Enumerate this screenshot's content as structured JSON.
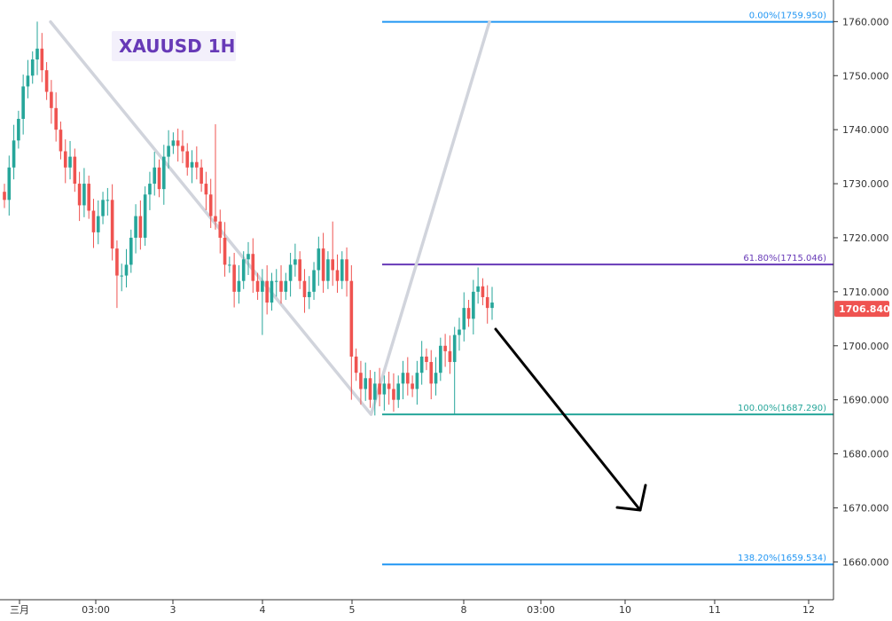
{
  "chart_data": {
    "type": "candlestick",
    "title": "XAUUSD 1H",
    "colors": {
      "up": "#26a69a",
      "down": "#ef5350",
      "fib_0": "#2196f3",
      "fib_618": "#673ab7",
      "fib_100": "#26a69a",
      "fib_1382": "#2196f3",
      "title_bg": "#f3f0fb",
      "title_text": "#673ab7",
      "zigzag": "#d1d4dc",
      "arrow": "#000000",
      "price_tag": "#ef5350",
      "grid_axis": "#333333"
    },
    "y_axis": {
      "min": 1653,
      "max": 1764,
      "ticks": [
        "1760.000",
        "1750.000",
        "1740.000",
        "1730.000",
        "1720.000",
        "1710.000",
        "1700.000",
        "1690.000",
        "1680.000",
        "1670.000",
        "1660.000"
      ],
      "tick_values": [
        1760,
        1750,
        1740,
        1730,
        1720,
        1710,
        1700,
        1690,
        1680,
        1670,
        1660
      ]
    },
    "x_axis": {
      "ticks": [
        "三月",
        "03:00",
        "3",
        "4",
        "5",
        "8",
        "03:00",
        "10",
        "11",
        "12"
      ]
    },
    "current_price": "1706.840",
    "current_price_value": 1706.84,
    "fib_levels": [
      {
        "label": "0.00%(1759.950)",
        "value": 1759.95,
        "color_key": "fib_0"
      },
      {
        "label": "61.80%(1715.046)",
        "value": 1715.046,
        "color_key": "fib_618"
      },
      {
        "label": "100.00%(1687.290)",
        "value": 1687.29,
        "color_key": "fib_100"
      },
      {
        "label": "138.20%(1659.534)",
        "value": 1659.534,
        "color_key": "fib_1382"
      }
    ],
    "candles_close": [
      1727,
      1733,
      1738,
      1742,
      1748,
      1750,
      1753,
      1755,
      1751,
      1747,
      1744,
      1740,
      1736,
      1733,
      1735,
      1730,
      1726,
      1730,
      1725,
      1721,
      1724,
      1727,
      1727,
      1718,
      1713,
      1713,
      1715,
      1720,
      1724,
      1720,
      1728,
      1730,
      1733,
      1729,
      1735,
      1737,
      1738,
      1737,
      1736,
      1733,
      1734,
      1733,
      1730,
      1728,
      1724,
      1723,
      1720,
      1715,
      1715,
      1710,
      1712,
      1716,
      1717,
      1712,
      1710,
      1712,
      1708,
      1712,
      1712,
      1710,
      1712,
      1715,
      1716,
      1712,
      1709,
      1710,
      1714,
      1718,
      1712,
      1716,
      1714,
      1712,
      1716,
      1712,
      1698,
      1695,
      1692,
      1694,
      1690,
      1693,
      1691,
      1693,
      1692,
      1690,
      1693,
      1695,
      1693,
      1692,
      1695,
      1698,
      1697,
      1693,
      1695,
      1700,
      1699,
      1697,
      1702,
      1703,
      1707,
      1705,
      1710,
      1711,
      1709,
      1707,
      1708
    ],
    "wick_extremes": [
      {
        "index": 7,
        "high": 1760
      },
      {
        "index": 24,
        "low": 1707
      },
      {
        "index": 45,
        "high": 1741
      },
      {
        "index": 55,
        "low": 1702
      },
      {
        "index": 70,
        "high": 1723
      },
      {
        "index": 74,
        "low": 1690
      },
      {
        "index": 81,
        "low": 1688
      },
      {
        "index": 96,
        "low": 1687.3
      },
      {
        "index": 101,
        "high": 1714.5
      }
    ],
    "zigzag": [
      {
        "from": "swing-high",
        "value": 1759.95
      },
      {
        "to": "swing-low",
        "value": 1687.29
      },
      {
        "to": "projection",
        "value": 1759.95
      }
    ]
  }
}
